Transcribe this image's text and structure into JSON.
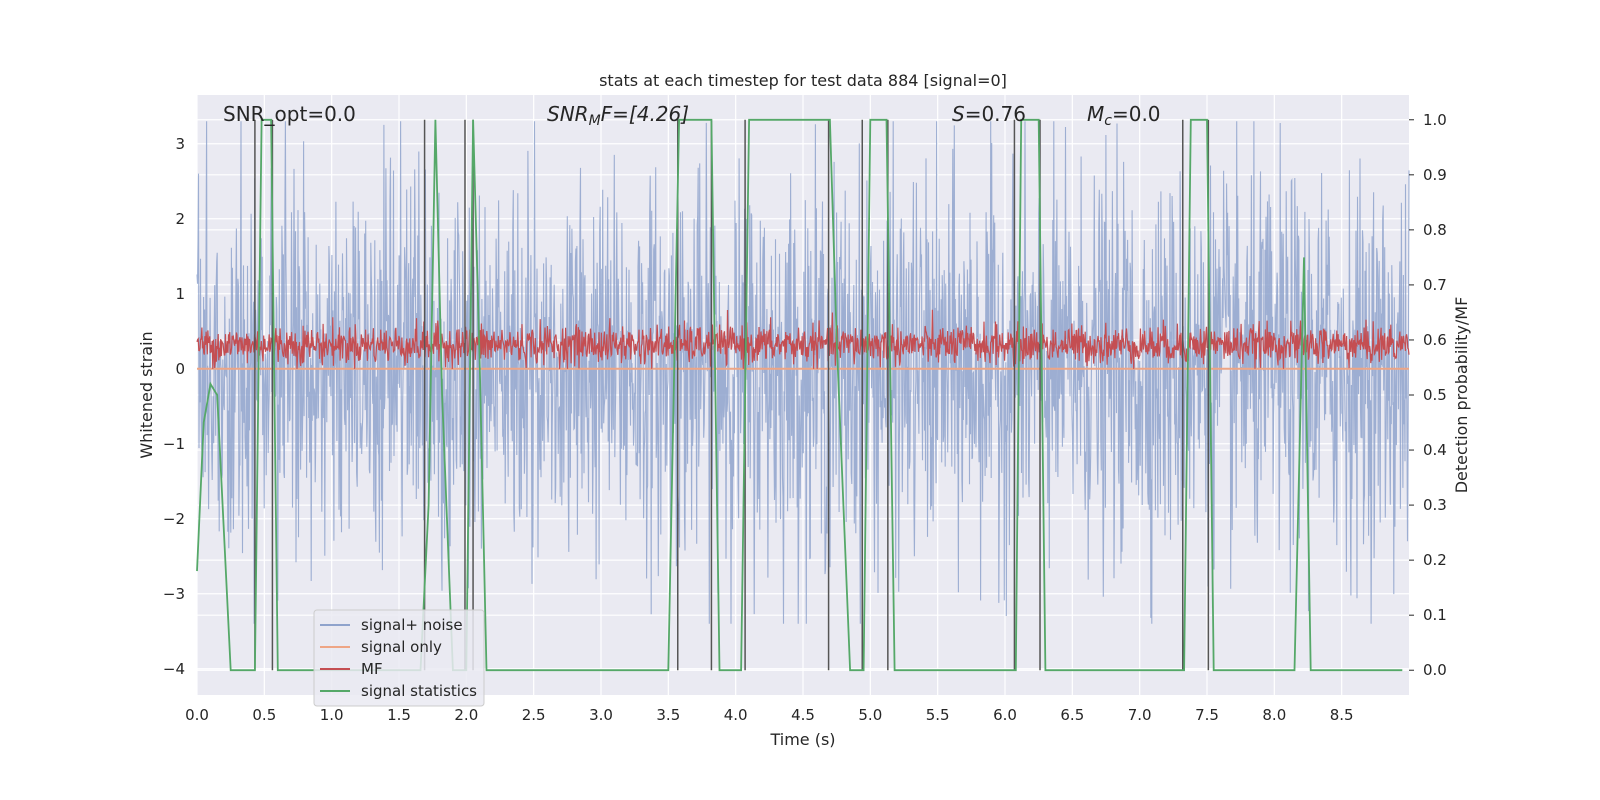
{
  "chart_data": {
    "type": "line",
    "title": "stats at each timestep for test data 884 [signal=0]",
    "xlabel": "Time (s)",
    "ylabel_left": "Whitened strain",
    "ylabel_right": "Detection probability/MF",
    "xlim": [
      0.0,
      9.0
    ],
    "ylim_left": [
      -4.35,
      3.65
    ],
    "ylim_right": [
      -0.045,
      1.045
    ],
    "x_ticks": [
      "0.0",
      "0.5",
      "1.0",
      "1.5",
      "2.0",
      "2.5",
      "3.0",
      "3.5",
      "4.0",
      "4.5",
      "5.0",
      "5.5",
      "6.0",
      "6.5",
      "7.0",
      "7.5",
      "8.0",
      "8.5"
    ],
    "y_ticks_left": [
      "3",
      "2",
      "1",
      "0",
      "−1",
      "−2",
      "−3",
      "−4"
    ],
    "y_ticks_right": [
      "1.0",
      "0.9",
      "0.8",
      "0.7",
      "0.6",
      "0.5",
      "0.4",
      "0.3",
      "0.2",
      "0.1",
      "0.0"
    ],
    "grid": true,
    "legend_position": "lower-left",
    "annotations": {
      "snr_opt": "SNR_opt=0.0",
      "snr_mf_pre": "SNR",
      "snr_mf_sub": "M",
      "snr_mf_post": "F=[4.26]",
      "s_italic": "S",
      "s_rest": "=0.76",
      "mc_italic": "M",
      "mc_sub": "c",
      "mc_rest": "=0.0"
    },
    "series": [
      {
        "name": "signal+ noise",
        "color": "#8fa3cc",
        "note_values": "noise, approx range -3.4..3.3"
      },
      {
        "name": "signal only",
        "color": "#eea585",
        "values_constant": 0.0
      },
      {
        "name": "MF",
        "color": "#c44e52",
        "approx_range": [
          0.0,
          0.85
        ]
      },
      {
        "name": "signal statistics",
        "color": "#55a868",
        "x": [
          0.0,
          0.05,
          0.1,
          0.15,
          0.25,
          0.43,
          0.48,
          0.55,
          0.6,
          0.63,
          0.7,
          1.3,
          1.66,
          1.72,
          1.77,
          1.82,
          1.9,
          1.95,
          2.0,
          2.05,
          2.1,
          2.15,
          2.2,
          2.4,
          3.5,
          3.58,
          3.64,
          3.7,
          3.82,
          3.88,
          3.92,
          4.04,
          4.1,
          4.14,
          4.7,
          4.75,
          4.85,
          4.95,
          5.0,
          5.12,
          5.18,
          5.22,
          6.08,
          6.12,
          6.25,
          6.3,
          7.33,
          7.38,
          7.5,
          7.55,
          8.15,
          8.22,
          8.27,
          8.35,
          8.95
        ],
        "values": [
          0.18,
          0.45,
          0.52,
          0.5,
          0.0,
          0.0,
          1.0,
          1.0,
          0.0,
          0.0,
          0.0,
          0.0,
          0.0,
          0.3,
          1.0,
          0.5,
          0.0,
          0.0,
          0.0,
          1.0,
          0.55,
          0.0,
          0.0,
          0.0,
          0.0,
          1.0,
          1.0,
          1.0,
          1.0,
          0.0,
          0.0,
          0.0,
          1.0,
          1.0,
          1.0,
          0.6,
          0.0,
          0.0,
          1.0,
          1.0,
          0.0,
          0.0,
          0.0,
          1.0,
          1.0,
          0.0,
          0.0,
          1.0,
          1.0,
          0.0,
          0.0,
          0.75,
          0.0,
          0.0,
          0.0
        ]
      }
    ],
    "vertical_lines_x": [
      0.43,
      0.56,
      1.69,
      1.99,
      2.05,
      3.57,
      3.82,
      4.07,
      4.69,
      4.94,
      5.13,
      6.07,
      6.26,
      7.32,
      7.51
    ],
    "vertical_lines_color": "#555555"
  }
}
